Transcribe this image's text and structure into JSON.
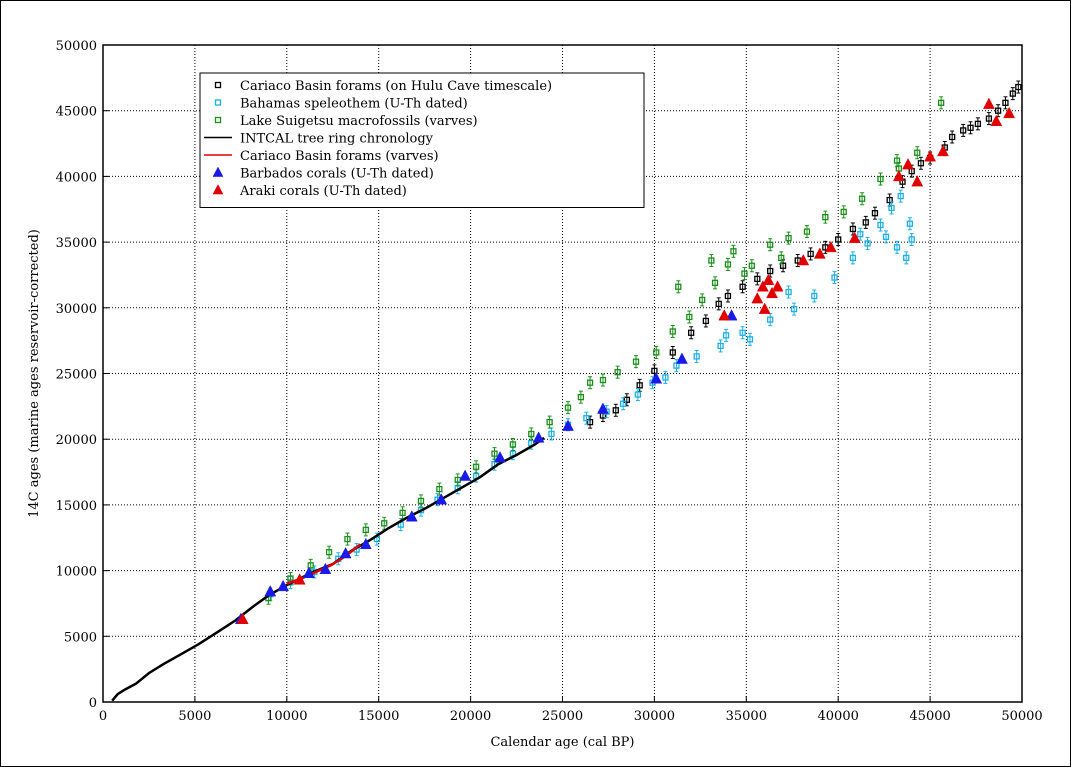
{
  "chart_data": {
    "type": "scatter",
    "xlabel": "Calendar age (cal BP)",
    "ylabel": "14C ages (marine ages reservoir-corrected)",
    "xlim": [
      0,
      50000
    ],
    "ylim": [
      0,
      50000
    ],
    "xticks": [
      "0",
      "5000",
      "10000",
      "15000",
      "20000",
      "25000",
      "30000",
      "35000",
      "40000",
      "45000",
      "50000"
    ],
    "yticks": [
      "0",
      "5000",
      "10000",
      "15000",
      "20000",
      "25000",
      "30000",
      "35000",
      "40000",
      "45000",
      "50000"
    ],
    "grid": true,
    "legend_position": "top-left",
    "series": [
      {
        "name": "Cariaco Basin forams (on Hulu Cave timescale)",
        "marker": "open-square",
        "color": "#000000",
        "error_bars": true,
        "points": [
          [
            26500,
            21300
          ],
          [
            27200,
            21800
          ],
          [
            27900,
            22200
          ],
          [
            28500,
            23000
          ],
          [
            29200,
            24100
          ],
          [
            30000,
            25200
          ],
          [
            31000,
            26600
          ],
          [
            32000,
            28100
          ],
          [
            32800,
            29000
          ],
          [
            33500,
            30300
          ],
          [
            34000,
            30900
          ],
          [
            34800,
            31600
          ],
          [
            35600,
            32200
          ],
          [
            36300,
            32800
          ],
          [
            37000,
            33200
          ],
          [
            37800,
            33600
          ],
          [
            38500,
            34100
          ],
          [
            39300,
            34600
          ],
          [
            40000,
            35200
          ],
          [
            40800,
            36000
          ],
          [
            41500,
            36500
          ],
          [
            42000,
            37200
          ],
          [
            42800,
            38200
          ],
          [
            43500,
            39600
          ],
          [
            44000,
            40400
          ],
          [
            44500,
            41000
          ],
          [
            45000,
            41400
          ],
          [
            45800,
            42200
          ],
          [
            46200,
            43000
          ],
          [
            46800,
            43500
          ],
          [
            47200,
            43700
          ],
          [
            47600,
            44000
          ],
          [
            48200,
            44400
          ],
          [
            48700,
            45000
          ],
          [
            49100,
            45600
          ],
          [
            49500,
            46300
          ],
          [
            49800,
            46800
          ]
        ]
      },
      {
        "name": "Bahamas speleothem (U-Th dated)",
        "marker": "open-square",
        "color": "#1ab0e8",
        "error_bars": true,
        "points": [
          [
            9100,
            8200
          ],
          [
            10200,
            9100
          ],
          [
            11500,
            9900
          ],
          [
            12800,
            10900
          ],
          [
            13800,
            11600
          ],
          [
            14900,
            12400
          ],
          [
            16200,
            13500
          ],
          [
            17300,
            14600
          ],
          [
            18200,
            15400
          ],
          [
            19300,
            16300
          ],
          [
            20300,
            17200
          ],
          [
            21300,
            18100
          ],
          [
            22300,
            18900
          ],
          [
            23300,
            19700
          ],
          [
            24400,
            20400
          ],
          [
            25300,
            21100
          ],
          [
            26300,
            21600
          ],
          [
            27400,
            22100
          ],
          [
            28300,
            22700
          ],
          [
            29100,
            23400
          ],
          [
            29900,
            24300
          ],
          [
            30600,
            24700
          ],
          [
            31200,
            25600
          ],
          [
            32300,
            26300
          ],
          [
            33600,
            27100
          ],
          [
            34800,
            28100
          ],
          [
            36300,
            29100
          ],
          [
            37600,
            29900
          ],
          [
            38700,
            30900
          ],
          [
            39800,
            32300
          ],
          [
            40800,
            33800
          ],
          [
            41600,
            34900
          ],
          [
            42300,
            36300
          ],
          [
            42900,
            37600
          ],
          [
            43400,
            38500
          ],
          [
            43900,
            36400
          ],
          [
            44000,
            35200
          ],
          [
            43200,
            34600
          ],
          [
            33900,
            27900
          ],
          [
            35200,
            27600
          ],
          [
            37300,
            31200
          ],
          [
            41200,
            35600
          ],
          [
            42600,
            35400
          ],
          [
            43700,
            33800
          ]
        ]
      },
      {
        "name": "Lake Suigetsu macrofossils (varves)",
        "marker": "open-square",
        "color": "#1a8f1a",
        "error_bars": true,
        "points": [
          [
            9000,
            7900
          ],
          [
            10200,
            9400
          ],
          [
            11300,
            10400
          ],
          [
            12300,
            11400
          ],
          [
            13300,
            12400
          ],
          [
            14300,
            13100
          ],
          [
            15300,
            13600
          ],
          [
            16300,
            14400
          ],
          [
            17300,
            15300
          ],
          [
            18300,
            16200
          ],
          [
            19300,
            16900
          ],
          [
            20300,
            17900
          ],
          [
            21300,
            18900
          ],
          [
            22300,
            19600
          ],
          [
            23300,
            20400
          ],
          [
            24300,
            21300
          ],
          [
            25300,
            22400
          ],
          [
            26000,
            23200
          ],
          [
            26500,
            24300
          ],
          [
            27200,
            24500
          ],
          [
            28000,
            25100
          ],
          [
            29000,
            25900
          ],
          [
            30100,
            26600
          ],
          [
            31000,
            28200
          ],
          [
            31900,
            29300
          ],
          [
            32600,
            30600
          ],
          [
            33300,
            31900
          ],
          [
            34000,
            33300
          ],
          [
            34300,
            34300
          ],
          [
            35300,
            33200
          ],
          [
            36300,
            34800
          ],
          [
            37300,
            35300
          ],
          [
            38300,
            35800
          ],
          [
            39300,
            36900
          ],
          [
            40300,
            37300
          ],
          [
            41300,
            38300
          ],
          [
            42300,
            39800
          ],
          [
            43300,
            40600
          ],
          [
            44300,
            41800
          ],
          [
            43200,
            41200
          ],
          [
            45600,
            45600
          ],
          [
            31300,
            31600
          ],
          [
            33100,
            33600
          ],
          [
            34900,
            32600
          ],
          [
            36900,
            33800
          ]
        ]
      },
      {
        "name": "INTCAL tree ring chronology",
        "marker": "line",
        "color": "#000000",
        "error_bars": false,
        "points": [
          [
            500,
            100
          ],
          [
            800,
            600
          ],
          [
            1200,
            950
          ],
          [
            1800,
            1400
          ],
          [
            2500,
            2200
          ],
          [
            3300,
            2900
          ],
          [
            4200,
            3600
          ],
          [
            5200,
            4400
          ],
          [
            6200,
            5300
          ],
          [
            7200,
            6200
          ],
          [
            8200,
            7300
          ],
          [
            9000,
            8100
          ],
          [
            10000,
            8900
          ],
          [
            11000,
            9600
          ],
          [
            11800,
            10100
          ],
          [
            12500,
            10500
          ],
          [
            13500,
            11500
          ],
          [
            14500,
            12300
          ],
          [
            15500,
            13200
          ],
          [
            16500,
            14000
          ],
          [
            17500,
            14700
          ],
          [
            18500,
            15500
          ],
          [
            19500,
            16300
          ],
          [
            20500,
            17100
          ],
          [
            21500,
            18100
          ],
          [
            22500,
            18800
          ],
          [
            23500,
            19600
          ],
          [
            24000,
            20100
          ]
        ]
      },
      {
        "name": "Cariaco Basin forams (varves)",
        "marker": "line",
        "color": "#e00000",
        "error_bars": false,
        "points": [
          [
            10000,
            9000
          ],
          [
            10800,
            9400
          ],
          [
            11600,
            9900
          ],
          [
            12400,
            10400
          ],
          [
            13200,
            11100
          ],
          [
            14000,
            12000
          ]
        ]
      },
      {
        "name": "Barbados corals (U-Th dated)",
        "marker": "filled-triangle",
        "color": "#1a1ae8",
        "error_bars": false,
        "points": [
          [
            7500,
            6300
          ],
          [
            9100,
            8400
          ],
          [
            9800,
            8800
          ],
          [
            11200,
            9800
          ],
          [
            12100,
            10100
          ],
          [
            13200,
            11300
          ],
          [
            14300,
            12000
          ],
          [
            16800,
            14100
          ],
          [
            18400,
            15400
          ],
          [
            19700,
            17200
          ],
          [
            21600,
            18600
          ],
          [
            23700,
            20100
          ],
          [
            25300,
            21000
          ],
          [
            27200,
            22300
          ],
          [
            30100,
            24600
          ],
          [
            31500,
            26100
          ],
          [
            34200,
            29400
          ]
        ]
      },
      {
        "name": "Araki corals (U-Th dated)",
        "marker": "filled-triangle",
        "color": "#e00000",
        "error_bars": false,
        "points": [
          [
            7600,
            6300
          ],
          [
            10700,
            9300
          ],
          [
            33800,
            29400
          ],
          [
            35600,
            30700
          ],
          [
            35900,
            31600
          ],
          [
            36200,
            32100
          ],
          [
            36400,
            31100
          ],
          [
            36000,
            29900
          ],
          [
            36700,
            31600
          ],
          [
            38100,
            33600
          ],
          [
            39000,
            34100
          ],
          [
            39600,
            34600
          ],
          [
            40900,
            35300
          ],
          [
            43300,
            40000
          ],
          [
            43800,
            40900
          ],
          [
            44300,
            39600
          ],
          [
            45000,
            41500
          ],
          [
            45700,
            41900
          ],
          [
            48200,
            45500
          ],
          [
            48600,
            44200
          ],
          [
            49300,
            44800
          ]
        ]
      }
    ]
  }
}
